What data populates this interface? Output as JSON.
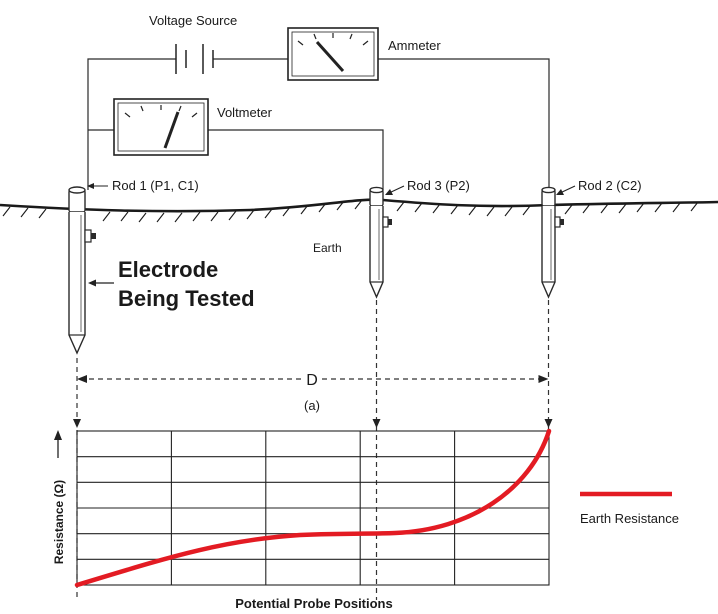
{
  "labels": {
    "voltage_source": "Voltage Source",
    "ammeter": "Ammeter",
    "voltmeter": "Voltmeter",
    "rod1": "Rod 1 (P1, C1)",
    "rod3": "Rod 3 (P2)",
    "rod2": "Rod 2 (C2)",
    "earth": "Earth",
    "electrode_line1": "Electrode",
    "electrode_line2": "Being Tested",
    "distance": "D",
    "subfigure": "(a)",
    "y_axis": "Resistance (Ω)",
    "x_axis": "Potential Probe Positions",
    "legend": "Earth Resistance"
  },
  "colors": {
    "curve": "#e31b23",
    "ink": "#222222"
  }
}
